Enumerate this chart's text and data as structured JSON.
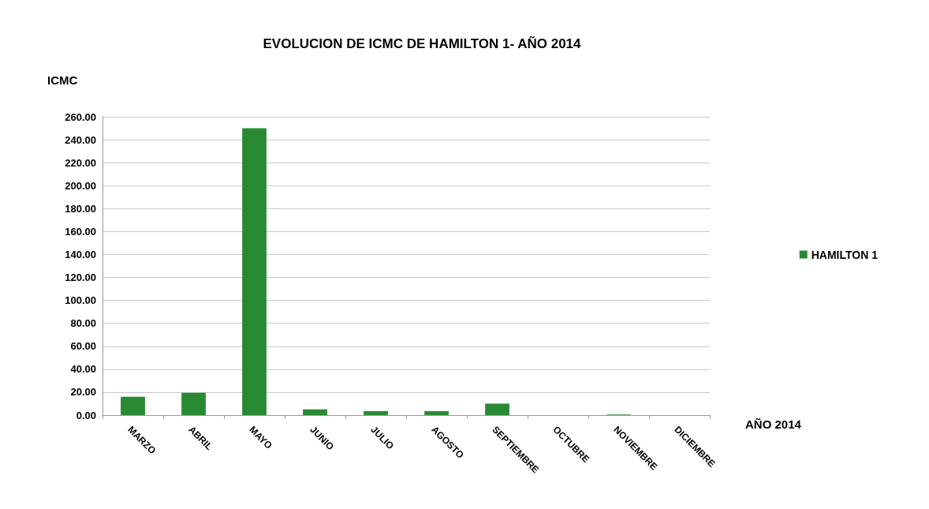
{
  "chart_data": {
    "type": "bar",
    "title": "EVOLUCION DE ICMC DE HAMILTON 1- AÑO 2014",
    "ylabel": "ICMC",
    "xlabel": "AÑO 2014",
    "categories": [
      "MARZO",
      "ABRIL",
      "MAYO",
      "JUNIO",
      "JULIO",
      "AGOSTO",
      "SEPTIEMBRE",
      "OCTUBRE",
      "NOVIEMBRE",
      "DICIEMBRE"
    ],
    "series": [
      {
        "name": "HAMILTON 1",
        "color": "#2a8a33",
        "values": [
          16,
          19.5,
          250,
          5,
          3.5,
          3.5,
          10,
          null,
          0.5,
          null
        ]
      }
    ],
    "ylim": [
      0,
      260
    ],
    "yticks": [
      {
        "value": 0,
        "label": "0.00"
      },
      {
        "value": 20,
        "label": "20.00"
      },
      {
        "value": 40,
        "label": "40.00"
      },
      {
        "value": 60,
        "label": "60.00"
      },
      {
        "value": 80,
        "label": "80.00"
      },
      {
        "value": 100,
        "label": "100.00"
      },
      {
        "value": 120,
        "label": "120.00"
      },
      {
        "value": 140,
        "label": "140.00"
      },
      {
        "value": 160,
        "label": "160.00"
      },
      {
        "value": 180,
        "label": "180.00"
      },
      {
        "value": 200,
        "label": "200.00"
      },
      {
        "value": 220,
        "label": "220.00"
      },
      {
        "value": 240,
        "label": "240.00"
      },
      {
        "value": 260,
        "label": "260.00"
      }
    ],
    "grid": "y",
    "legend": "right"
  }
}
